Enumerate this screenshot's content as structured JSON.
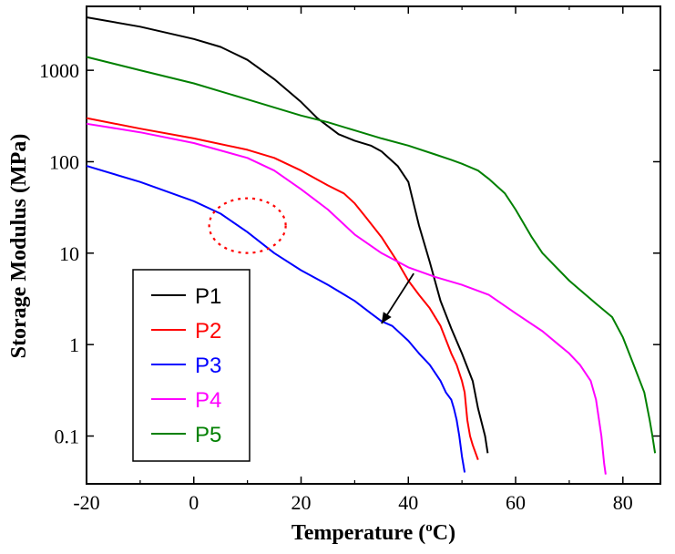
{
  "chart_data": {
    "type": "line",
    "xlabel": "Temperature (",
    "xlabel_sup": "o",
    "xlabel_end": "C)",
    "ylabel": "Storage Modulus (MPa)",
    "xlim": [
      -20,
      87
    ],
    "ylim": [
      0.03,
      5000
    ],
    "yscale": "log",
    "x_ticks": [
      -20,
      0,
      20,
      40,
      60,
      80
    ],
    "x_tick_labels": [
      "-20",
      "0",
      "20",
      "40",
      "60",
      "80"
    ],
    "y_ticks": [
      0.1,
      1,
      10,
      100,
      1000
    ],
    "y_tick_labels": [
      "0.1",
      "1",
      "10",
      "100",
      "1000"
    ],
    "legend_position": "bottom-left",
    "series": [
      {
        "name": "P1",
        "color": "#000000",
        "points": [
          [
            -20,
            3800
          ],
          [
            -10,
            3000
          ],
          [
            0,
            2200
          ],
          [
            5,
            1800
          ],
          [
            10,
            1300
          ],
          [
            15,
            800
          ],
          [
            20,
            450
          ],
          [
            23,
            300
          ],
          [
            27,
            200
          ],
          [
            30,
            170
          ],
          [
            33,
            150
          ],
          [
            35,
            130
          ],
          [
            38,
            90
          ],
          [
            40,
            60
          ],
          [
            42,
            20
          ],
          [
            44,
            8
          ],
          [
            46,
            3
          ],
          [
            48,
            1.5
          ],
          [
            50,
            0.8
          ],
          [
            52,
            0.4
          ],
          [
            53,
            0.2
          ],
          [
            54.3,
            0.1
          ],
          [
            54.8,
            0.065
          ]
        ]
      },
      {
        "name": "P2",
        "color": "#ff0000",
        "points": [
          [
            -20,
            300
          ],
          [
            -10,
            230
          ],
          [
            0,
            180
          ],
          [
            10,
            135
          ],
          [
            15,
            110
          ],
          [
            20,
            80
          ],
          [
            25,
            55
          ],
          [
            28,
            45
          ],
          [
            30,
            35
          ],
          [
            32,
            25
          ],
          [
            35,
            15
          ],
          [
            38,
            8
          ],
          [
            40,
            5
          ],
          [
            42,
            3.5
          ],
          [
            44,
            2.5
          ],
          [
            46,
            1.6
          ],
          [
            48,
            0.8
          ],
          [
            49,
            0.6
          ],
          [
            50,
            0.4
          ],
          [
            50.5,
            0.3
          ],
          [
            51,
            0.15
          ],
          [
            51.5,
            0.1
          ],
          [
            52,
            0.08
          ],
          [
            53,
            0.055
          ]
        ]
      },
      {
        "name": "P3",
        "color": "#0000ff",
        "points": [
          [
            -20,
            90
          ],
          [
            -10,
            60
          ],
          [
            0,
            37
          ],
          [
            5,
            27
          ],
          [
            10,
            17
          ],
          [
            15,
            10
          ],
          [
            20,
            6.5
          ],
          [
            25,
            4.5
          ],
          [
            30,
            3
          ],
          [
            33,
            2.2
          ],
          [
            35,
            1.8
          ],
          [
            37,
            1.6
          ],
          [
            40,
            1.1
          ],
          [
            42,
            0.8
          ],
          [
            44,
            0.6
          ],
          [
            46,
            0.4
          ],
          [
            47,
            0.3
          ],
          [
            48,
            0.25
          ],
          [
            48.5,
            0.2
          ],
          [
            49,
            0.15
          ],
          [
            49.5,
            0.1
          ],
          [
            50,
            0.06
          ],
          [
            50.5,
            0.04
          ]
        ]
      },
      {
        "name": "P4",
        "color": "#ff00ff",
        "points": [
          [
            -20,
            260
          ],
          [
            -10,
            210
          ],
          [
            0,
            160
          ],
          [
            10,
            110
          ],
          [
            15,
            80
          ],
          [
            20,
            50
          ],
          [
            25,
            30
          ],
          [
            30,
            16
          ],
          [
            35,
            10
          ],
          [
            40,
            7
          ],
          [
            45,
            5.5
          ],
          [
            50,
            4.5
          ],
          [
            55,
            3.5
          ],
          [
            60,
            2.2
          ],
          [
            65,
            1.4
          ],
          [
            68,
            1
          ],
          [
            70,
            0.8
          ],
          [
            72,
            0.6
          ],
          [
            74,
            0.4
          ],
          [
            75,
            0.25
          ],
          [
            76,
            0.1
          ],
          [
            76.5,
            0.05
          ],
          [
            76.8,
            0.038
          ]
        ]
      },
      {
        "name": "P5",
        "color": "#008000",
        "points": [
          [
            -20,
            1400
          ],
          [
            -10,
            1000
          ],
          [
            0,
            720
          ],
          [
            10,
            480
          ],
          [
            20,
            320
          ],
          [
            25,
            270
          ],
          [
            30,
            220
          ],
          [
            35,
            180
          ],
          [
            40,
            150
          ],
          [
            45,
            120
          ],
          [
            48,
            105
          ],
          [
            50,
            95
          ],
          [
            53,
            80
          ],
          [
            55,
            65
          ],
          [
            58,
            45
          ],
          [
            60,
            30
          ],
          [
            63,
            15
          ],
          [
            65,
            10
          ],
          [
            70,
            5
          ],
          [
            75,
            2.8
          ],
          [
            78,
            2
          ],
          [
            80,
            1.2
          ],
          [
            82,
            0.6
          ],
          [
            84,
            0.3
          ],
          [
            85,
            0.15
          ],
          [
            85.5,
            0.1
          ],
          [
            86,
            0.065
          ]
        ]
      }
    ],
    "annotations": [
      {
        "type": "dashed-ellipse",
        "color": "#ff0000",
        "center": [
          10,
          20
        ]
      },
      {
        "type": "arrow",
        "color": "#000000",
        "from": [
          41,
          6
        ],
        "to": [
          35,
          1.7
        ]
      }
    ]
  }
}
